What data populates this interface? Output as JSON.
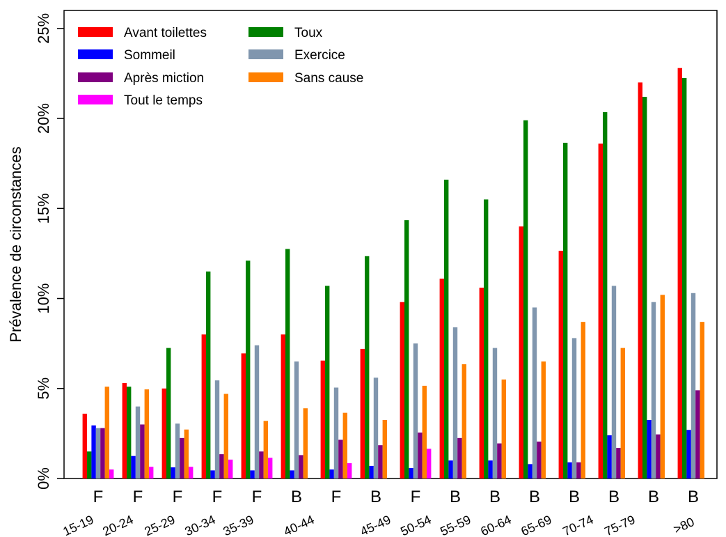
{
  "chart_data": {
    "type": "bar",
    "ylabel": "Prévalence de circonstances",
    "categories": [
      "F",
      "F",
      "F",
      "F",
      "F",
      "B",
      "F",
      "B",
      "F",
      "B",
      "B",
      "B",
      "B",
      "B",
      "B",
      "B"
    ],
    "age_labels": [
      "15-19",
      "20-24",
      "25-29",
      "30-34",
      "35-39",
      "40-44",
      "45-49",
      "50-54",
      "55-59",
      "60-64",
      "65-69",
      "70-74",
      "75-79",
      ">80"
    ],
    "ylim": [
      0,
      26
    ],
    "yticks": [
      {
        "value": 0,
        "label": "0%"
      },
      {
        "value": 5,
        "label": "5%"
      },
      {
        "value": 10,
        "label": "10%"
      },
      {
        "value": 15,
        "label": "15%"
      },
      {
        "value": 20,
        "label": "20%"
      },
      {
        "value": 25,
        "label": "25%"
      }
    ],
    "legend": "top-left",
    "series": [
      {
        "name": "Avant toilettes",
        "color": "#ff0000",
        "values": [
          3.6,
          5.3,
          5.0,
          8.0,
          6.95,
          8.0,
          6.55,
          7.2,
          9.8,
          11.1,
          10.6,
          14.0,
          12.65,
          18.6,
          22.0,
          22.8
        ]
      },
      {
        "name": "Toux",
        "color": "#008000",
        "values": [
          1.5,
          5.1,
          7.25,
          11.5,
          12.1,
          12.75,
          10.7,
          12.35,
          14.35,
          16.6,
          15.5,
          19.9,
          18.65,
          20.35,
          21.2,
          22.25
        ]
      },
      {
        "name": "Sommeil",
        "color": "#0000ff",
        "values": [
          2.95,
          1.25,
          0.62,
          0.45,
          0.45,
          0.45,
          0.5,
          0.7,
          0.58,
          1.0,
          1.0,
          0.8,
          0.9,
          2.4,
          3.25,
          2.7
        ]
      },
      {
        "name": "Exercice",
        "color": "#8096ae",
        "values": [
          2.8,
          4.0,
          3.05,
          5.45,
          7.4,
          6.5,
          5.05,
          5.6,
          7.5,
          8.4,
          7.25,
          9.5,
          7.8,
          10.7,
          9.8,
          10.3
        ]
      },
      {
        "name": "Après miction",
        "color": "#800080",
        "values": [
          2.8,
          3.0,
          2.25,
          1.35,
          1.5,
          1.3,
          2.15,
          1.85,
          2.55,
          2.25,
          1.95,
          2.05,
          0.9,
          1.7,
          2.45,
          4.9
        ]
      },
      {
        "name": "Sans cause",
        "color": "#ff8000",
        "values": [
          5.1,
          4.95,
          2.72,
          4.7,
          3.2,
          3.9,
          3.65,
          3.25,
          5.15,
          6.35,
          5.5,
          6.5,
          8.7,
          7.25,
          10.2,
          8.7
        ]
      },
      {
        "name": "Tout le temps",
        "color": "#ff00ff",
        "values": [
          0.5,
          0.65,
          0.65,
          1.05,
          1.15,
          null,
          0.85,
          null,
          1.65,
          null,
          null,
          null,
          null,
          null,
          null,
          null
        ]
      }
    ]
  }
}
